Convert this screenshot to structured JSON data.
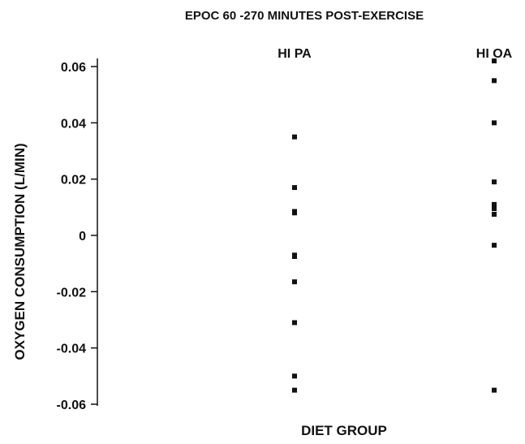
{
  "chart_data": {
    "type": "scatter",
    "title": "EPOC 60 -270 MINUTES POST-EXERCISE",
    "xlabel": "DIET GROUP",
    "ylabel": "OXYGEN CONSUMPTION (L/MIN)",
    "categories": [
      "HI PA",
      "HI OA"
    ],
    "ylim": [
      -0.06,
      0.06
    ],
    "yticks": [
      {
        "value": 0.06,
        "label": "0.06"
      },
      {
        "value": 0.04,
        "label": "0.04"
      },
      {
        "value": 0.02,
        "label": "0.02"
      },
      {
        "value": 0,
        "label": "0"
      },
      {
        "value": -0.02,
        "label": "-0.02"
      },
      {
        "value": -0.04,
        "label": "-0.04"
      },
      {
        "value": -0.06,
        "label": "-0.06"
      }
    ],
    "grid": false,
    "series": [
      {
        "category": "HI PA",
        "values": [
          0.035,
          0.017,
          0.0085,
          0.008,
          -0.007,
          -0.0075,
          -0.0165,
          -0.031,
          -0.05,
          -0.055
        ]
      },
      {
        "category": "HI OA",
        "values": [
          0.062,
          0.055,
          0.04,
          0.019,
          0.011,
          0.0095,
          0.0075,
          -0.0035,
          -0.055
        ]
      }
    ]
  }
}
